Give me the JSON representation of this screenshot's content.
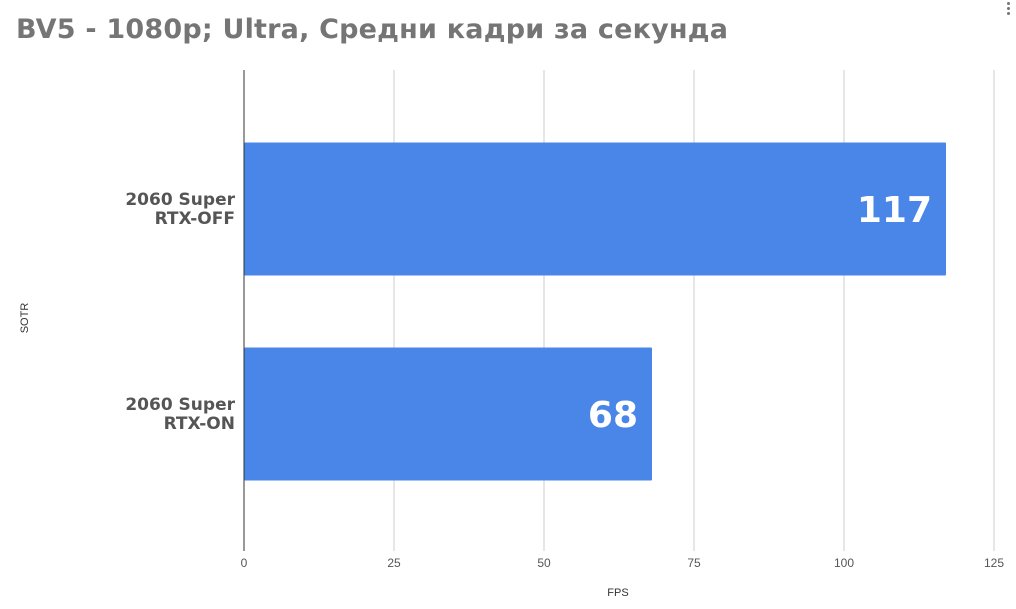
{
  "chart_data": {
    "type": "bar",
    "orientation": "horizontal",
    "title": "BV5 - 1080p; Ultra, Средни кадри за секунда",
    "xlabel": "FPS",
    "ylabel": "SOTR",
    "categories": [
      [
        "2060 Super",
        "RTX-OFF"
      ],
      [
        "2060 Super",
        "RTX-ON"
      ]
    ],
    "values": [
      117,
      68
    ],
    "xlim": [
      0,
      125
    ],
    "xticks": [
      0,
      25,
      50,
      75,
      100,
      125
    ],
    "grid": true,
    "bar_color": "#4a86e8",
    "data_labels": true
  }
}
